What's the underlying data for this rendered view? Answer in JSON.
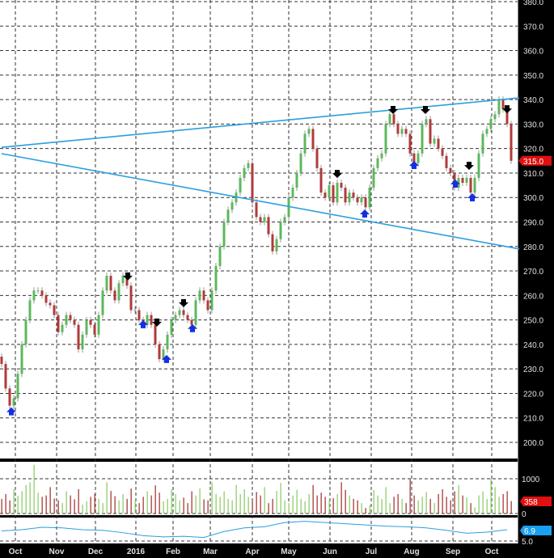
{
  "chart_data": {
    "type": "candlestick",
    "price_axis": {
      "range": [
        200,
        380
      ],
      "ticks": [
        "200.0",
        "210.0",
        "220.0",
        "230.0",
        "240.0",
        "250.0",
        "260.0",
        "270.0",
        "280.0",
        "290.0",
        "300.0",
        "310.0",
        "320.0",
        "330.0",
        "340.0",
        "350.0",
        "360.0",
        "370.0",
        "380.0"
      ],
      "tick_values": [
        200,
        210,
        220,
        230,
        240,
        250,
        260,
        270,
        280,
        290,
        300,
        310,
        320,
        330,
        340,
        350,
        360,
        370,
        380
      ],
      "last_price_label": "315.0",
      "last_price": 315
    },
    "x_axis": {
      "labels": [
        "Oct",
        "Nov",
        "Dec",
        "2016",
        "Feb",
        "Mar",
        "Apr",
        "May",
        "Jun",
        "Jul",
        "Aug",
        "Sep",
        "Oct"
      ],
      "bar_index": [
        3.4,
        13.6,
        23.2,
        33.2,
        42.4,
        51.6,
        62,
        71,
        81.2,
        91.4,
        101.4,
        111.6,
        121.2
      ]
    },
    "grid": true,
    "closes": [
      232,
      222,
      215,
      218,
      228,
      240,
      250,
      258,
      262,
      262,
      260,
      257,
      256,
      252,
      245,
      248,
      252,
      250,
      248,
      238,
      244,
      250,
      248,
      244,
      252,
      262,
      268,
      262,
      258,
      265,
      268,
      264,
      254,
      254,
      250,
      248,
      252,
      248,
      240,
      234,
      238,
      244,
      250,
      252,
      254,
      252,
      250,
      248,
      258,
      262,
      258,
      254,
      262,
      272,
      280,
      290,
      295,
      298,
      302,
      308,
      312,
      314,
      298,
      292,
      290,
      292,
      285,
      278,
      283,
      290,
      292,
      300,
      304,
      310,
      318,
      326,
      328,
      320,
      312,
      302,
      300,
      305,
      298,
      306,
      304,
      298,
      302,
      300,
      298,
      300,
      296,
      304,
      312,
      316,
      318,
      330,
      334,
      330,
      326,
      328,
      326,
      318,
      314,
      318,
      330,
      332,
      322,
      324,
      320,
      317,
      312,
      310,
      304,
      308,
      306,
      308,
      302,
      308,
      318,
      326,
      328,
      332,
      334,
      340,
      336,
      330,
      315
    ],
    "trendlines": [
      {
        "start_index": 0,
        "start_price": 320.5,
        "end_index": 128,
        "end_price": 340.7,
        "color": "#2a9fe0"
      },
      {
        "start_index": 0,
        "start_price": 317.9,
        "end_index": 128,
        "end_price": 279.0,
        "color": "#2a9fe0"
      }
    ],
    "signals": [
      {
        "type": "sell",
        "index": 31.2,
        "price": 267.4
      },
      {
        "type": "sell",
        "index": 38.4,
        "price": 248.6
      },
      {
        "type": "sell",
        "index": 45,
        "price": 256.5
      },
      {
        "type": "sell",
        "index": 83,
        "price": 309.3
      },
      {
        "type": "sell",
        "index": 96.8,
        "price": 335.4
      },
      {
        "type": "sell",
        "index": 104.8,
        "price": 335.4
      },
      {
        "type": "sell",
        "index": 115.6,
        "price": 312.6
      },
      {
        "type": "sell",
        "index": 125,
        "price": 335.7
      },
      {
        "type": "buy",
        "index": 2.4,
        "price": 213
      },
      {
        "type": "buy",
        "index": 35,
        "price": 248.6
      },
      {
        "type": "buy",
        "index": 40.8,
        "price": 234.4
      },
      {
        "type": "buy",
        "index": 47.2,
        "price": 247
      },
      {
        "type": "buy",
        "index": 89.8,
        "price": 293.8
      },
      {
        "type": "buy",
        "index": 102,
        "price": 313.6
      },
      {
        "type": "buy",
        "index": 112.2,
        "price": 306
      },
      {
        "type": "buy",
        "index": 116.4,
        "price": 300.4
      }
    ],
    "volume": {
      "ticks": [
        "0",
        "1000"
      ],
      "tick_values": [
        0,
        1000
      ],
      "range": [
        0,
        1550
      ],
      "last_label": "358",
      "values": [
        420,
        560,
        380,
        700,
        510,
        640,
        820,
        900,
        1400,
        600,
        480,
        520,
        760,
        430,
        380,
        300,
        640,
        520,
        410,
        700,
        260,
        350,
        480,
        560,
        420,
        300,
        900,
        650,
        500,
        380,
        560,
        420,
        720,
        380,
        300,
        480,
        640,
        520,
        810,
        600,
        350,
        420,
        700,
        560,
        380,
        460,
        300,
        640,
        520,
        720,
        410,
        380,
        900,
        560,
        480,
        640,
        420,
        380,
        820,
        560,
        700,
        480,
        350,
        620,
        520,
        760,
        300,
        420,
        650,
        880,
        380,
        300,
        520,
        680,
        420,
        350,
        560,
        820,
        520,
        600,
        480,
        380,
        440,
        560,
        900,
        680,
        520,
        420,
        380,
        300,
        160,
        240,
        680,
        520,
        420,
        760,
        300,
        480,
        560,
        420,
        300,
        980,
        520,
        380,
        480,
        620,
        420,
        300,
        560,
        700,
        480,
        380,
        640,
        820,
        520,
        460,
        300,
        180,
        520,
        640,
        420,
        1000,
        760,
        480,
        560,
        640,
        358
      ]
    },
    "indicator": {
      "ticks": [
        "5.0"
      ],
      "tick_values": [
        5.0
      ],
      "last_label": "6.9",
      "color": "#2a9fe0",
      "values": [
        6.7,
        6.9,
        7.3,
        7.2,
        6.9,
        6.8,
        6.4,
        5.9,
        5.7,
        5.8,
        5.6,
        6.6,
        7.2,
        7.4,
        8.1,
        8.3,
        8.1,
        7.9,
        7.7,
        7.5,
        7.4,
        7.2,
        6.8,
        6.3,
        6.5,
        6.9
      ]
    },
    "colors": {
      "up": "#5cb85c",
      "down": "#b03a3a",
      "sell_arrow": "#000000",
      "buy_arrow": "#1530e0",
      "last_price_badge": "#e01010",
      "indicator_badge": "#1aa0f0"
    }
  }
}
